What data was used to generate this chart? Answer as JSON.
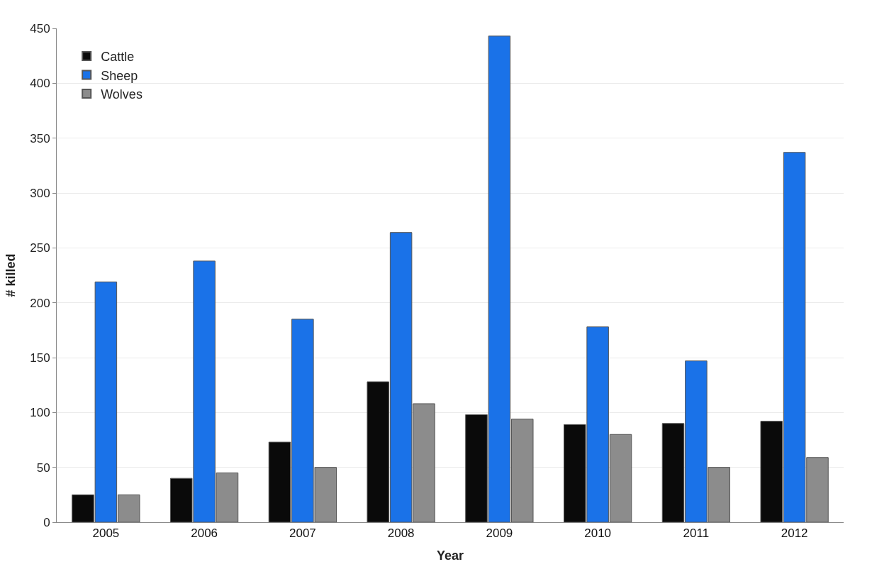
{
  "chart_data": {
    "type": "bar",
    "xlabel": "Year",
    "ylabel": "# killed",
    "categories": [
      "2005",
      "2006",
      "2007",
      "2008",
      "2009",
      "2010",
      "2011",
      "2012"
    ],
    "series": [
      {
        "name": "Cattle",
        "color": "#0a0a0a",
        "values": [
          25,
          40,
          73,
          128,
          98,
          89,
          90,
          92
        ]
      },
      {
        "name": "Sheep",
        "color": "#1a72e8",
        "values": [
          219,
          238,
          185,
          264,
          443,
          178,
          147,
          337
        ]
      },
      {
        "name": "Wolves",
        "color": "#8c8c8c",
        "values": [
          25,
          45,
          50,
          108,
          94,
          80,
          50,
          59
        ]
      }
    ],
    "ylim": [
      0,
      450
    ],
    "yticks": [
      0,
      50,
      100,
      150,
      200,
      250,
      300,
      350,
      400,
      450
    ],
    "grid": "y",
    "legend": "top left"
  }
}
